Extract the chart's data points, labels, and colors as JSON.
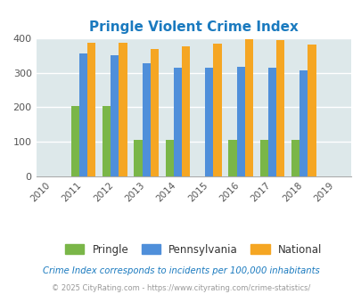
{
  "title": "Pringle Violent Crime Index",
  "title_color": "#1a7abf",
  "all_years": [
    "2010",
    "2011",
    "2012",
    "2013",
    "2014",
    "2015",
    "2016",
    "2017",
    "2018",
    "2019"
  ],
  "bar_years": [
    2011,
    2012,
    2013,
    2014,
    2015,
    2016,
    2017,
    2018
  ],
  "pringle": [
    204,
    204,
    105,
    105,
    0,
    105,
    107,
    107
  ],
  "pennsylvania": [
    355,
    350,
    328,
    314,
    314,
    317,
    314,
    306
  ],
  "national": [
    387,
    387,
    369,
    376,
    384,
    398,
    394,
    381
  ],
  "pringle_color": "#7ab648",
  "pennsylvania_color": "#4f8fda",
  "national_color": "#f5a623",
  "bg_color": "#dde8ea",
  "ylim": [
    0,
    400
  ],
  "yticks": [
    0,
    100,
    200,
    300,
    400
  ],
  "bar_width": 0.26,
  "footnote1": "Crime Index corresponds to incidents per 100,000 inhabitants",
  "footnote2": "© 2025 CityRating.com - https://www.cityrating.com/crime-statistics/",
  "footnote1_color": "#1a7abf",
  "footnote2_color": "#999999",
  "legend_labels": [
    "Pringle",
    "Pennsylvania",
    "National"
  ]
}
